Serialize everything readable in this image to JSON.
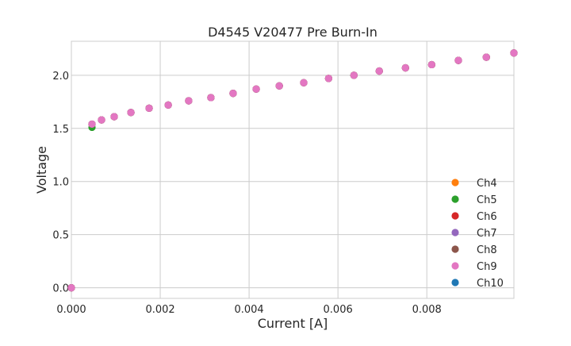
{
  "chart_data": {
    "type": "scatter",
    "title": "D4545 V20477 Pre Burn-In",
    "xlabel": "Current [A]",
    "ylabel": "Voltage",
    "xlim": [
      0,
      0.00996
    ],
    "ylim": [
      -0.1,
      2.32
    ],
    "grid": true,
    "legend_position": "lower-right",
    "x_ticks": [
      "0.000",
      "0.002",
      "0.004",
      "0.006",
      "0.008"
    ],
    "x_tick_values": [
      0,
      0.002,
      0.004,
      0.006,
      0.008
    ],
    "y_ticks": [
      "0.0",
      "0.5",
      "1.0",
      "1.5",
      "2.0"
    ],
    "y_tick_values": [
      0,
      0.5,
      1.0,
      1.5,
      2.0
    ],
    "x": [
      0,
      0.000464,
      0.000679,
      0.000964,
      0.00134,
      0.00175,
      0.00218,
      0.00264,
      0.00314,
      0.00364,
      0.00416,
      0.00468,
      0.00523,
      0.00579,
      0.00636,
      0.00693,
      0.00752,
      0.00811,
      0.00871,
      0.00934,
      0.00996
    ],
    "series": [
      {
        "name": "Ch4",
        "color": "#ff7f0e",
        "values": [
          0,
          1.54,
          1.58,
          1.61,
          1.65,
          1.69,
          1.72,
          1.76,
          1.79,
          1.83,
          1.87,
          1.9,
          1.93,
          1.97,
          2.0,
          2.04,
          2.07,
          2.1,
          2.14,
          2.17,
          2.21
        ]
      },
      {
        "name": "Ch5",
        "color": "#2ca02c",
        "values": [
          0,
          1.51,
          1.58,
          1.61,
          1.65,
          1.69,
          1.72,
          1.76,
          1.79,
          1.83,
          1.87,
          1.9,
          1.93,
          1.97,
          2.0,
          2.04,
          2.07,
          2.1,
          2.14,
          2.17,
          2.21
        ]
      },
      {
        "name": "Ch6",
        "color": "#d62728",
        "values": [
          0,
          1.54,
          1.58,
          1.61,
          1.65,
          1.69,
          1.72,
          1.76,
          1.79,
          1.83,
          1.87,
          1.9,
          1.93,
          1.97,
          2.0,
          2.04,
          2.07,
          2.1,
          2.14,
          2.17,
          2.21
        ]
      },
      {
        "name": "Ch7",
        "color": "#9467bd",
        "values": [
          0,
          1.54,
          1.58,
          1.61,
          1.65,
          1.69,
          1.72,
          1.76,
          1.79,
          1.83,
          1.87,
          1.9,
          1.93,
          1.97,
          2.0,
          2.04,
          2.07,
          2.1,
          2.14,
          2.17,
          2.21
        ]
      },
      {
        "name": "Ch8",
        "color": "#8c564b",
        "values": [
          0,
          1.54,
          1.58,
          1.61,
          1.65,
          1.69,
          1.72,
          1.76,
          1.79,
          1.83,
          1.87,
          1.9,
          1.93,
          1.97,
          2.0,
          2.04,
          2.07,
          2.1,
          2.14,
          2.17,
          2.21
        ]
      },
      {
        "name": "Ch9",
        "color": "#e377c2",
        "values": [
          0,
          1.54,
          1.58,
          1.61,
          1.65,
          1.69,
          1.72,
          1.76,
          1.79,
          1.83,
          1.87,
          1.9,
          1.93,
          1.97,
          2.0,
          2.04,
          2.07,
          2.1,
          2.14,
          2.17,
          2.21
        ]
      },
      {
        "name": "Ch10",
        "color": "#1f77b4",
        "values": [
          0,
          1.54,
          1.58,
          1.61,
          1.65,
          1.69,
          1.72,
          1.76,
          1.79,
          1.83,
          1.87,
          1.9,
          1.93,
          1.97,
          2.0,
          2.04,
          2.07,
          2.1,
          2.14,
          2.17,
          2.21
        ]
      }
    ]
  }
}
